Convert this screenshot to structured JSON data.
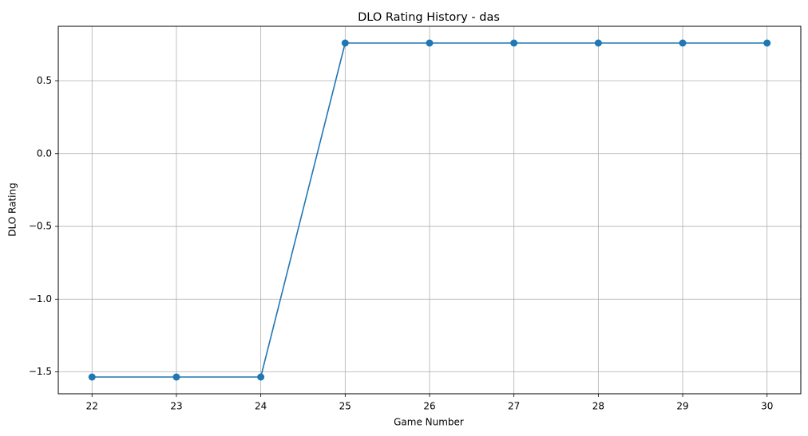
{
  "chart_data": {
    "type": "line",
    "title": "DLO Rating History - das",
    "xlabel": "Game Number",
    "ylabel": "DLO Rating",
    "x": [
      22,
      23,
      24,
      25,
      26,
      27,
      28,
      29,
      30
    ],
    "series": [
      {
        "values": [
          -1.535,
          -1.535,
          -1.535,
          0.76,
          0.76,
          0.76,
          0.76,
          0.76,
          0.76
        ],
        "color": "#1f77b4",
        "marker": "circle"
      }
    ],
    "xticks": [
      22,
      23,
      24,
      25,
      26,
      27,
      28,
      29,
      30
    ],
    "xtick_labels": [
      "22",
      "23",
      "24",
      "25",
      "26",
      "27",
      "28",
      "29",
      "30"
    ],
    "yticks": [
      -1.5,
      -1.0,
      -0.5,
      0.0,
      0.5
    ],
    "ytick_labels": [
      "−1.5",
      "−1.0",
      "−0.5",
      "0.0",
      "0.5"
    ],
    "xlim": [
      21.6,
      30.4
    ],
    "ylim": [
      -1.65,
      0.875
    ],
    "grid": true
  }
}
